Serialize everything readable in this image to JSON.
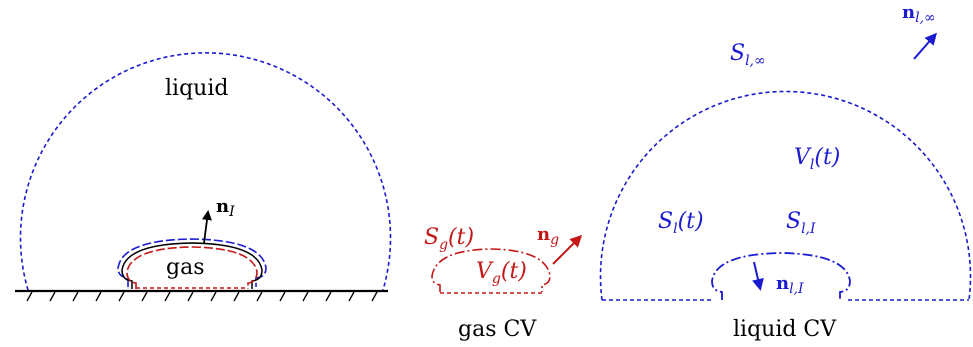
{
  "colors": {
    "liquid": "#1a1ad0",
    "gas": "#c41818",
    "text": "#000000"
  },
  "left_panel": {
    "liquid_label": "liquid",
    "gas_label": "gas",
    "normal_interface": {
      "bold": "n",
      "sub": "I"
    }
  },
  "gas_cv": {
    "caption": "gas CV",
    "surface": {
      "main": "S",
      "sub": "g",
      "arg": "(t)"
    },
    "volume": {
      "main": "V",
      "sub": "g",
      "arg": "(t)"
    },
    "normal": {
      "bold": "n",
      "sub": "g"
    }
  },
  "liquid_cv": {
    "caption": "liquid CV",
    "surface_far": {
      "main": "S",
      "sub": "l,∞"
    },
    "normal_far": {
      "bold": "n",
      "sub": "l,∞"
    },
    "volume": {
      "main": "V",
      "sub": "l",
      "arg": "(t)"
    },
    "surface": {
      "main": "S",
      "sub": "l",
      "arg": "(t)"
    },
    "surface_interface": {
      "main": "S",
      "sub": "l,I"
    },
    "normal_interface": {
      "bold": "n",
      "sub": "l,I"
    }
  }
}
